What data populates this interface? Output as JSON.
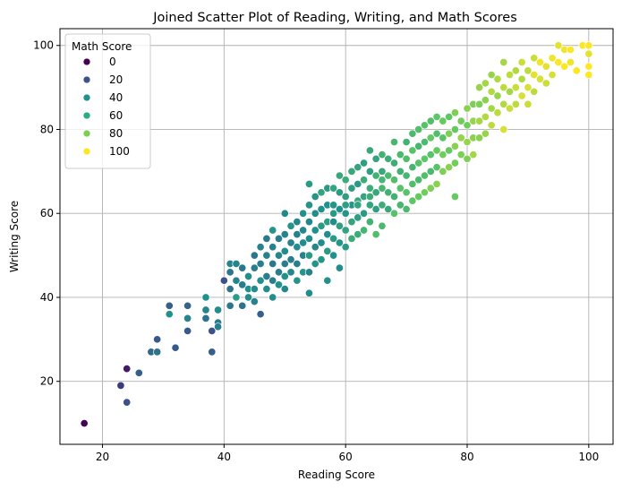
{
  "chart_data": {
    "type": "scatter",
    "title": "Joined Scatter Plot of Reading, Writing, and Math Scores",
    "xlabel": "Reading Score",
    "ylabel": "Writing Score",
    "xlim": [
      13,
      104
    ],
    "ylim": [
      5,
      104
    ],
    "xticks": [
      20,
      40,
      60,
      80,
      100
    ],
    "yticks": [
      20,
      40,
      60,
      80,
      100
    ],
    "grid": true,
    "legend": {
      "title": "Math Score",
      "placement": "top-left",
      "entries": [
        {
          "label": "0",
          "color": "#440154"
        },
        {
          "label": "20",
          "color": "#3b528b"
        },
        {
          "label": "40",
          "color": "#21918c"
        },
        {
          "label": "60",
          "color": "#27ad81"
        },
        {
          "label": "80",
          "color": "#7ad151"
        },
        {
          "label": "100",
          "color": "#fde725"
        }
      ]
    },
    "color_encoding": "Math Score (viridis, 0 to 100)",
    "points": [
      [
        17,
        10,
        0
      ],
      [
        24,
        23,
        8
      ],
      [
        23,
        19,
        18
      ],
      [
        24,
        15,
        25
      ],
      [
        26,
        22,
        30
      ],
      [
        28,
        27,
        35
      ],
      [
        29,
        27,
        38
      ],
      [
        29,
        30,
        28
      ],
      [
        31,
        38,
        30
      ],
      [
        31,
        36,
        50
      ],
      [
        32,
        28,
        28
      ],
      [
        34,
        38,
        32
      ],
      [
        34,
        32,
        28
      ],
      [
        34,
        35,
        45
      ],
      [
        37,
        37,
        45
      ],
      [
        37,
        35,
        38
      ],
      [
        37,
        40,
        50
      ],
      [
        38,
        32,
        25
      ],
      [
        38,
        27,
        30
      ],
      [
        39,
        37,
        48
      ],
      [
        39,
        34,
        40
      ],
      [
        39,
        33,
        42
      ],
      [
        40,
        44,
        25
      ],
      [
        41,
        48,
        45
      ],
      [
        41,
        46,
        40
      ],
      [
        41,
        42,
        38
      ],
      [
        41,
        38,
        40
      ],
      [
        42,
        48,
        45
      ],
      [
        42,
        44,
        45
      ],
      [
        42,
        40,
        55
      ],
      [
        43,
        47,
        40
      ],
      [
        43,
        43,
        42
      ],
      [
        43,
        38,
        38
      ],
      [
        44,
        45,
        48
      ],
      [
        44,
        42,
        50
      ],
      [
        44,
        40,
        48
      ],
      [
        45,
        50,
        40
      ],
      [
        45,
        47,
        42
      ],
      [
        45,
        42,
        48
      ],
      [
        45,
        39,
        44
      ],
      [
        46,
        52,
        44
      ],
      [
        46,
        48,
        42
      ],
      [
        46,
        44,
        50
      ],
      [
        46,
        36,
        30
      ],
      [
        47,
        54,
        40
      ],
      [
        47,
        50,
        44
      ],
      [
        47,
        45,
        42
      ],
      [
        47,
        42,
        48
      ],
      [
        48,
        56,
        52
      ],
      [
        48,
        52,
        44
      ],
      [
        48,
        48,
        40
      ],
      [
        48,
        44,
        42
      ],
      [
        48,
        40,
        48
      ],
      [
        49,
        54,
        42
      ],
      [
        49,
        50,
        46
      ],
      [
        49,
        46,
        42
      ],
      [
        49,
        43,
        50
      ],
      [
        50,
        60,
        46
      ],
      [
        50,
        55,
        44
      ],
      [
        50,
        51,
        48
      ],
      [
        50,
        48,
        42
      ],
      [
        50,
        45,
        50
      ],
      [
        50,
        42,
        46
      ],
      [
        51,
        57,
        52
      ],
      [
        51,
        53,
        44
      ],
      [
        51,
        49,
        42
      ],
      [
        51,
        46,
        46
      ],
      [
        52,
        58,
        46
      ],
      [
        52,
        55,
        44
      ],
      [
        52,
        52,
        48
      ],
      [
        52,
        48,
        42
      ],
      [
        52,
        44,
        52
      ],
      [
        53,
        60,
        50
      ],
      [
        53,
        56,
        46
      ],
      [
        53,
        53,
        48
      ],
      [
        53,
        50,
        44
      ],
      [
        53,
        46,
        52
      ],
      [
        54,
        67,
        54
      ],
      [
        54,
        62,
        52
      ],
      [
        54,
        58,
        46
      ],
      [
        54,
        54,
        48
      ],
      [
        54,
        50,
        54
      ],
      [
        54,
        46,
        44
      ],
      [
        54,
        41,
        48
      ],
      [
        55,
        64,
        52
      ],
      [
        55,
        60,
        48
      ],
      [
        55,
        56,
        50
      ],
      [
        55,
        52,
        46
      ],
      [
        55,
        48,
        52
      ],
      [
        56,
        65,
        58
      ],
      [
        56,
        61,
        50
      ],
      [
        56,
        57,
        54
      ],
      [
        56,
        53,
        48
      ],
      [
        56,
        49,
        52
      ],
      [
        57,
        66,
        54
      ],
      [
        57,
        62,
        50
      ],
      [
        57,
        58,
        56
      ],
      [
        57,
        55,
        48
      ],
      [
        57,
        51,
        54
      ],
      [
        57,
        44,
        50
      ],
      [
        58,
        66,
        58
      ],
      [
        58,
        62,
        52
      ],
      [
        58,
        58,
        48
      ],
      [
        58,
        54,
        54
      ],
      [
        58,
        50,
        50
      ],
      [
        59,
        69,
        60
      ],
      [
        59,
        65,
        54
      ],
      [
        59,
        61,
        50
      ],
      [
        59,
        57,
        56
      ],
      [
        59,
        53,
        52
      ],
      [
        59,
        47,
        48
      ],
      [
        60,
        68,
        62
      ],
      [
        60,
        64,
        56
      ],
      [
        60,
        60,
        52
      ],
      [
        60,
        56,
        58
      ],
      [
        60,
        52,
        54
      ],
      [
        61,
        70,
        60
      ],
      [
        61,
        66,
        56
      ],
      [
        61,
        62,
        52
      ],
      [
        61,
        58,
        58
      ],
      [
        61,
        54,
        62
      ],
      [
        62,
        71,
        58
      ],
      [
        62,
        67,
        54
      ],
      [
        62,
        63,
        60
      ],
      [
        62,
        59,
        56
      ],
      [
        62,
        55,
        62
      ],
      [
        63,
        72,
        56
      ],
      [
        63,
        68,
        62
      ],
      [
        63,
        64,
        58
      ],
      [
        63,
        60,
        54
      ],
      [
        63,
        56,
        66
      ],
      [
        64,
        75,
        60
      ],
      [
        64,
        70,
        56
      ],
      [
        64,
        66,
        62
      ],
      [
        64,
        62,
        58
      ],
      [
        64,
        58,
        64
      ],
      [
        65,
        73,
        58
      ],
      [
        65,
        69,
        64
      ],
      [
        65,
        65,
        60
      ],
      [
        65,
        61,
        56
      ],
      [
        65,
        55,
        70
      ],
      [
        66,
        74,
        64
      ],
      [
        66,
        70,
        60
      ],
      [
        66,
        66,
        66
      ],
      [
        66,
        62,
        62
      ],
      [
        66,
        57,
        68
      ],
      [
        67,
        73,
        62
      ],
      [
        67,
        69,
        68
      ],
      [
        67,
        65,
        64
      ],
      [
        67,
        61,
        60
      ],
      [
        68,
        77,
        66
      ],
      [
        68,
        72,
        62
      ],
      [
        68,
        68,
        70
      ],
      [
        68,
        64,
        64
      ],
      [
        68,
        60,
        72
      ],
      [
        69,
        74,
        68
      ],
      [
        69,
        70,
        64
      ],
      [
        69,
        66,
        72
      ],
      [
        69,
        62,
        66
      ],
      [
        70,
        77,
        64
      ],
      [
        70,
        73,
        70
      ],
      [
        70,
        69,
        66
      ],
      [
        70,
        65,
        72
      ],
      [
        70,
        61,
        68
      ],
      [
        71,
        79,
        68
      ],
      [
        71,
        75,
        72
      ],
      [
        71,
        71,
        66
      ],
      [
        71,
        67,
        70
      ],
      [
        71,
        63,
        74
      ],
      [
        72,
        80,
        70
      ],
      [
        72,
        76,
        66
      ],
      [
        72,
        72,
        72
      ],
      [
        72,
        68,
        68
      ],
      [
        72,
        64,
        76
      ],
      [
        73,
        81,
        72
      ],
      [
        73,
        77,
        68
      ],
      [
        73,
        73,
        74
      ],
      [
        73,
        69,
        70
      ],
      [
        73,
        65,
        78
      ],
      [
        74,
        82,
        70
      ],
      [
        74,
        78,
        76
      ],
      [
        74,
        74,
        72
      ],
      [
        74,
        70,
        68
      ],
      [
        74,
        66,
        80
      ],
      [
        75,
        83,
        74
      ],
      [
        75,
        79,
        70
      ],
      [
        75,
        75,
        76
      ],
      [
        75,
        71,
        72
      ],
      [
        75,
        67,
        82
      ],
      [
        76,
        82,
        76
      ],
      [
        76,
        78,
        72
      ],
      [
        76,
        74,
        78
      ],
      [
        76,
        70,
        80
      ],
      [
        77,
        83,
        74
      ],
      [
        77,
        79,
        80
      ],
      [
        77,
        75,
        76
      ],
      [
        77,
        71,
        82
      ],
      [
        78,
        84,
        80
      ],
      [
        78,
        80,
        76
      ],
      [
        78,
        76,
        82
      ],
      [
        78,
        72,
        78
      ],
      [
        78,
        64,
        76
      ],
      [
        79,
        82,
        78
      ],
      [
        79,
        78,
        84
      ],
      [
        79,
        74,
        80
      ],
      [
        80,
        85,
        82
      ],
      [
        80,
        81,
        78
      ],
      [
        80,
        77,
        84
      ],
      [
        80,
        73,
        80
      ],
      [
        81,
        86,
        80
      ],
      [
        81,
        82,
        84
      ],
      [
        81,
        78,
        82
      ],
      [
        81,
        74,
        86
      ],
      [
        82,
        90,
        84
      ],
      [
        82,
        86,
        80
      ],
      [
        82,
        82,
        86
      ],
      [
        82,
        78,
        82
      ],
      [
        83,
        91,
        86
      ],
      [
        83,
        87,
        82
      ],
      [
        83,
        83,
        88
      ],
      [
        83,
        79,
        84
      ],
      [
        84,
        93,
        84
      ],
      [
        84,
        89,
        88
      ],
      [
        84,
        85,
        86
      ],
      [
        84,
        81,
        90
      ],
      [
        85,
        92,
        88
      ],
      [
        85,
        88,
        84
      ],
      [
        85,
        84,
        90
      ],
      [
        86,
        96,
        86
      ],
      [
        86,
        90,
        90
      ],
      [
        86,
        86,
        88
      ],
      [
        86,
        80,
        94
      ],
      [
        87,
        93,
        90
      ],
      [
        87,
        89,
        86
      ],
      [
        87,
        85,
        92
      ],
      [
        88,
        94,
        88
      ],
      [
        88,
        90,
        92
      ],
      [
        88,
        86,
        90
      ],
      [
        89,
        96,
        92
      ],
      [
        89,
        92,
        88
      ],
      [
        89,
        88,
        94
      ],
      [
        90,
        94,
        90
      ],
      [
        90,
        90,
        94
      ],
      [
        90,
        86,
        92
      ],
      [
        91,
        97,
        92
      ],
      [
        91,
        93,
        96
      ],
      [
        91,
        89,
        90
      ],
      [
        92,
        96,
        98
      ],
      [
        92,
        92,
        94
      ],
      [
        93,
        95,
        96
      ],
      [
        93,
        91,
        92
      ],
      [
        94,
        97,
        98
      ],
      [
        94,
        93,
        94
      ],
      [
        95,
        100,
        96
      ],
      [
        95,
        96,
        100
      ],
      [
        96,
        99,
        98
      ],
      [
        96,
        95,
        100
      ],
      [
        97,
        99,
        100
      ],
      [
        97,
        96,
        98
      ],
      [
        98,
        94,
        100
      ],
      [
        99,
        100,
        100
      ],
      [
        100,
        100,
        100
      ],
      [
        100,
        98,
        96
      ],
      [
        100,
        95,
        100
      ],
      [
        100,
        93,
        100
      ],
      [
        62,
        62,
        58
      ],
      [
        64,
        64,
        62
      ],
      [
        66,
        68,
        66
      ],
      [
        60,
        62,
        56
      ],
      [
        58,
        60,
        54
      ]
    ]
  }
}
